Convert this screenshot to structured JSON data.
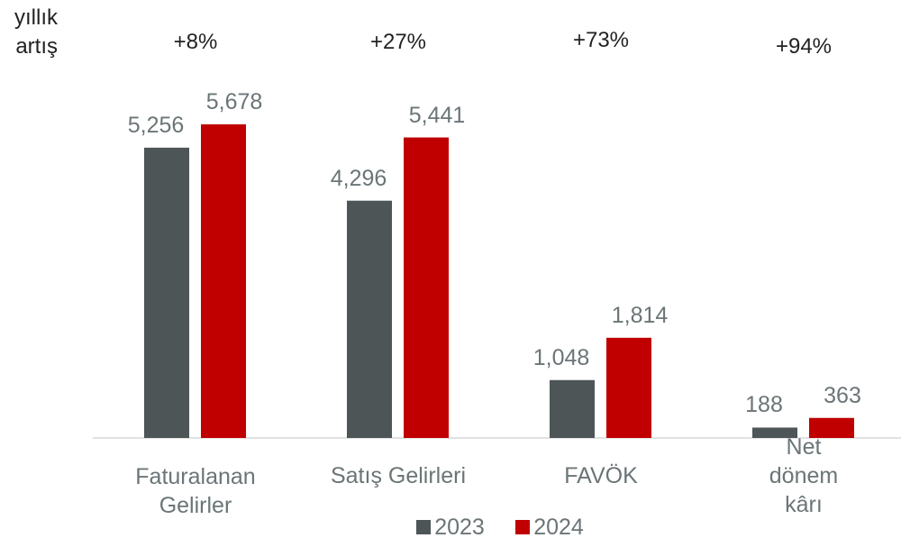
{
  "chart_data": {
    "type": "bar",
    "categories": [
      "Faturalanan\nGelirler",
      "Satış Gelirleri",
      "FAVÖK",
      "Net dönem kârı"
    ],
    "series": [
      {
        "name": "2023",
        "color": "#4d5557",
        "values": [
          5256,
          4296,
          1048,
          188
        ],
        "value_labels": [
          "5,256",
          "4,296",
          "1,048",
          "188"
        ]
      },
      {
        "name": "2024",
        "color": "#c00000",
        "values": [
          5678,
          5441,
          1814,
          363
        ],
        "value_labels": [
          "5,678",
          "5,441",
          "1,814",
          "363"
        ]
      }
    ],
    "annotation_title": "yıllık\nartış",
    "annotations": [
      "+8%",
      "+27%",
      "+73%",
      "+94%"
    ]
  }
}
